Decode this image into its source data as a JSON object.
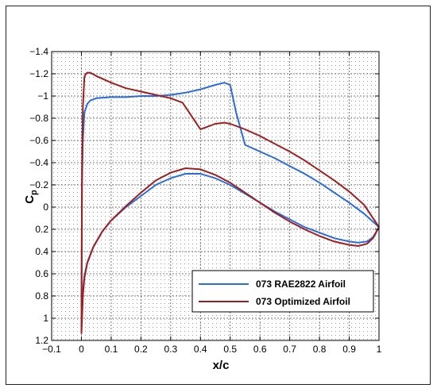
{
  "chart_data": {
    "type": "line",
    "xlabel": "x/c",
    "ylabel_main": "C",
    "ylabel_sub": "p",
    "xlim": [
      -0.1,
      1.0
    ],
    "ylim": [
      -1.4,
      1.2
    ],
    "y_inverted": true,
    "grid": "dotted",
    "legend_position": "bottom-right",
    "x_ticks": [
      {
        "value": -0.1,
        "label": "−0.1"
      },
      {
        "value": 0.0,
        "label": "0"
      },
      {
        "value": 0.1,
        "label": "0.1"
      },
      {
        "value": 0.2,
        "label": "0.2"
      },
      {
        "value": 0.3,
        "label": "0.3"
      },
      {
        "value": 0.4,
        "label": "0.4"
      },
      {
        "value": 0.5,
        "label": "0.5"
      },
      {
        "value": 0.6,
        "label": "0.6"
      },
      {
        "value": 0.7,
        "label": "0.7"
      },
      {
        "value": 0.8,
        "label": "0.8"
      },
      {
        "value": 0.9,
        "label": "0.9"
      },
      {
        "value": 1.0,
        "label": "1"
      }
    ],
    "y_ticks": [
      {
        "value": -1.4,
        "label": "−1.4"
      },
      {
        "value": -1.2,
        "label": "−1.2"
      },
      {
        "value": -1.0,
        "label": "−1"
      },
      {
        "value": -0.8,
        "label": "−0.8"
      },
      {
        "value": -0.6,
        "label": "−0.6"
      },
      {
        "value": -0.4,
        "label": "−0.4"
      },
      {
        "value": -0.2,
        "label": "−0.2"
      },
      {
        "value": 0.0,
        "label": "0"
      },
      {
        "value": 0.2,
        "label": "0.2"
      },
      {
        "value": 0.4,
        "label": "0.4"
      },
      {
        "value": 0.6,
        "label": "0.6"
      },
      {
        "value": 0.8,
        "label": "0.8"
      },
      {
        "value": 1.0,
        "label": "1"
      },
      {
        "value": 1.2,
        "label": "1.2"
      }
    ],
    "series": [
      {
        "name": "073 RAE2822 Airfoil",
        "color": "#2b6cdc",
        "upper": {
          "x": [
            0.0,
            0.002,
            0.005,
            0.01,
            0.02,
            0.03,
            0.05,
            0.1,
            0.15,
            0.2,
            0.25,
            0.3,
            0.35,
            0.4,
            0.45,
            0.48,
            0.5,
            0.52,
            0.55,
            0.6,
            0.65,
            0.7,
            0.75,
            0.8,
            0.85,
            0.9,
            0.95,
            1.0
          ],
          "y": [
            0.9,
            -0.2,
            -0.6,
            -0.85,
            -0.93,
            -0.96,
            -0.98,
            -0.99,
            -0.99,
            -1.0,
            -1.0,
            -1.01,
            -1.03,
            -1.06,
            -1.1,
            -1.12,
            -1.1,
            -0.85,
            -0.56,
            -0.5,
            -0.44,
            -0.37,
            -0.3,
            -0.22,
            -0.13,
            -0.04,
            0.06,
            0.18
          ]
        },
        "lower": {
          "x": [
            0.0,
            0.005,
            0.01,
            0.02,
            0.04,
            0.07,
            0.1,
            0.15,
            0.2,
            0.25,
            0.3,
            0.35,
            0.4,
            0.45,
            0.5,
            0.55,
            0.6,
            0.65,
            0.7,
            0.75,
            0.8,
            0.85,
            0.9,
            0.93,
            0.96,
            0.98,
            1.0
          ],
          "y": [
            0.9,
            0.75,
            0.62,
            0.5,
            0.36,
            0.22,
            0.12,
            0.0,
            -0.1,
            -0.2,
            -0.26,
            -0.3,
            -0.3,
            -0.26,
            -0.2,
            -0.12,
            -0.04,
            0.04,
            0.11,
            0.18,
            0.23,
            0.28,
            0.31,
            0.32,
            0.31,
            0.27,
            0.18
          ]
        }
      },
      {
        "name": "073 Optimized Airfoil",
        "color": "#9e1f1f",
        "upper": {
          "x": [
            0.0,
            0.002,
            0.005,
            0.01,
            0.015,
            0.02,
            0.03,
            0.05,
            0.1,
            0.15,
            0.2,
            0.25,
            0.3,
            0.34,
            0.36,
            0.38,
            0.4,
            0.42,
            0.45,
            0.48,
            0.5,
            0.55,
            0.6,
            0.65,
            0.7,
            0.75,
            0.8,
            0.85,
            0.9,
            0.95,
            1.0
          ],
          "y": [
            1.14,
            -0.3,
            -0.9,
            -1.17,
            -1.2,
            -1.21,
            -1.21,
            -1.18,
            -1.12,
            -1.07,
            -1.04,
            -1.01,
            -0.98,
            -0.94,
            -0.86,
            -0.78,
            -0.7,
            -0.72,
            -0.75,
            -0.76,
            -0.75,
            -0.7,
            -0.64,
            -0.57,
            -0.5,
            -0.42,
            -0.33,
            -0.24,
            -0.14,
            -0.02,
            0.18
          ]
        },
        "lower": {
          "x": [
            0.0,
            0.005,
            0.01,
            0.02,
            0.04,
            0.07,
            0.1,
            0.15,
            0.2,
            0.25,
            0.3,
            0.35,
            0.4,
            0.45,
            0.5,
            0.55,
            0.6,
            0.65,
            0.7,
            0.75,
            0.8,
            0.85,
            0.9,
            0.93,
            0.96,
            0.98,
            1.0
          ],
          "y": [
            1.14,
            0.8,
            0.64,
            0.5,
            0.36,
            0.22,
            0.12,
            -0.01,
            -0.13,
            -0.24,
            -0.31,
            -0.35,
            -0.34,
            -0.29,
            -0.22,
            -0.13,
            -0.04,
            0.05,
            0.13,
            0.2,
            0.26,
            0.31,
            0.34,
            0.35,
            0.33,
            0.28,
            0.18
          ]
        }
      }
    ]
  }
}
